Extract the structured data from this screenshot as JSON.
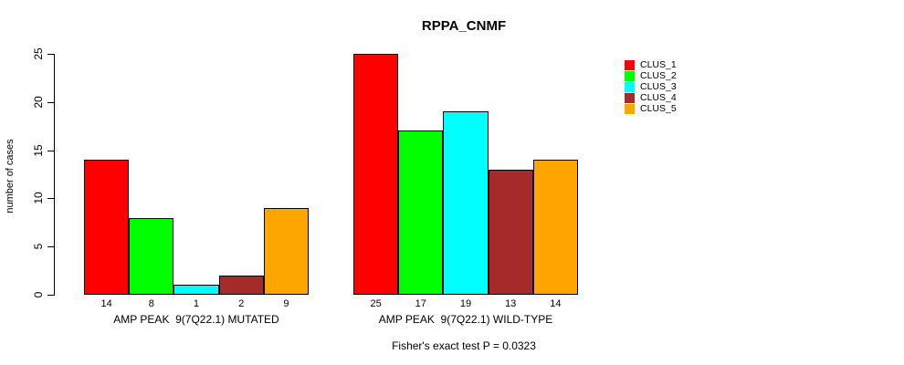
{
  "chart_data": {
    "type": "bar",
    "title": "RPPA_CNMF",
    "ylabel": "number of cases",
    "ylim": [
      0,
      25
    ],
    "yticks": [
      0,
      5,
      10,
      15,
      20,
      25
    ],
    "grid": false,
    "legend_position": "right",
    "categories": [
      "CLUS_1",
      "CLUS_2",
      "CLUS_3",
      "CLUS_4",
      "CLUS_5"
    ],
    "series_colors": [
      "#FF0000",
      "#00FF00",
      "#00FFFF",
      "#A52A2A",
      "#FFA500"
    ],
    "bar_border_color": "#000000",
    "groups": [
      {
        "label": "AMP PEAK  9(7Q22.1) MUTATED",
        "values": [
          14,
          8,
          1,
          2,
          9
        ]
      },
      {
        "label": "AMP PEAK  9(7Q22.1) WILD-TYPE",
        "values": [
          25,
          17,
          19,
          13,
          14
        ]
      }
    ],
    "legend": [
      {
        "label": "CLUS_1",
        "color": "#FF0000"
      },
      {
        "label": "CLUS_2",
        "color": "#00FF00"
      },
      {
        "label": "CLUS_3",
        "color": "#00FFFF"
      },
      {
        "label": "CLUS_4",
        "color": "#A52A2A"
      },
      {
        "label": "CLUS_5",
        "color": "#FFA500"
      }
    ],
    "footnote": "Fisher's exact test P = 0.0323"
  }
}
